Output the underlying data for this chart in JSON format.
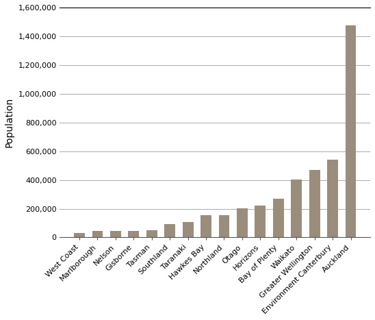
{
  "categories": [
    "West Coast",
    "Marlborough",
    "Nelson",
    "Gisborne",
    "Tasman",
    "Southland",
    "Taranaki",
    "Hawkes Bay",
    "Northland",
    "Otago",
    "Horizons",
    "Bay of Plenty",
    "Waikato",
    "Greater Wellington",
    "Environment Canterbury",
    "Auckland"
  ],
  "values": [
    32000,
    46000,
    46500,
    44000,
    48000,
    93000,
    107000,
    154000,
    154000,
    202000,
    222000,
    267000,
    404000,
    471000,
    539000,
    1474000
  ],
  "bar_color": "#9b8d7c",
  "ylabel": "Population",
  "ylim": [
    0,
    1600000
  ],
  "yticks": [
    0,
    200000,
    400000,
    600000,
    800000,
    1000000,
    1200000,
    1400000,
    1600000
  ],
  "background_color": "#ffffff",
  "grid_color": "#aaaaaa",
  "tick_label_fontsize": 8,
  "ylabel_fontsize": 10,
  "bar_edge_color": "none"
}
